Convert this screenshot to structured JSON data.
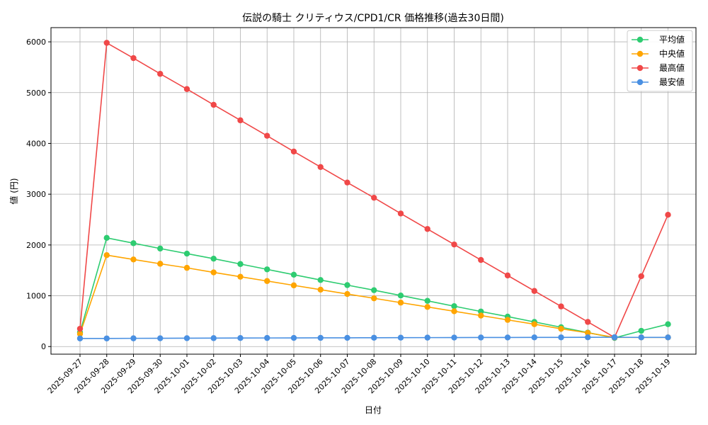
{
  "chart_data": {
    "type": "line",
    "title": "伝説の騎士 クリティウス/CPD1/CR 価格推移(過去30日間)",
    "xlabel": "日付",
    "ylabel": "値 (円)",
    "ylim": [
      -150,
      6280
    ],
    "yticks": [
      0,
      1000,
      2000,
      3000,
      4000,
      5000,
      6000
    ],
    "grid": true,
    "legend_position": "top-right",
    "categories": [
      "2025-09-27",
      "2025-09-28",
      "2025-09-29",
      "2025-09-30",
      "2025-10-01",
      "2025-10-02",
      "2025-10-03",
      "2025-10-04",
      "2025-10-05",
      "2025-10-06",
      "2025-10-07",
      "2025-10-08",
      "2025-10-09",
      "2025-10-10",
      "2025-10-11",
      "2025-10-12",
      "2025-10-13",
      "2025-10-14",
      "2025-10-15",
      "2025-10-16",
      "2025-10-17",
      "2025-10-18",
      "2025-10-19"
    ],
    "series": [
      {
        "name": "平均値",
        "color": "#2ecc71",
        "values": [
          280,
          2140,
          2035,
          1930,
          1830,
          1730,
          1625,
          1520,
          1415,
          1310,
          1210,
          1110,
          1005,
          900,
          795,
          690,
          590,
          485,
          380,
          275,
          170,
          310,
          440
        ]
      },
      {
        "name": "中央値",
        "color": "#ffa500",
        "values": [
          250,
          1800,
          1715,
          1630,
          1550,
          1460,
          1375,
          1290,
          1205,
          1120,
          1035,
          950,
          865,
          780,
          695,
          610,
          525,
          440,
          350,
          270,
          180,
          180,
          180
        ]
      },
      {
        "name": "最高値",
        "color": "#f04848",
        "values": [
          350,
          5980,
          5680,
          5370,
          5070,
          4760,
          4455,
          4150,
          3840,
          3535,
          3230,
          2930,
          2620,
          2315,
          2010,
          1705,
          1400,
          1095,
          790,
          485,
          180,
          1385,
          2595
        ]
      },
      {
        "name": "最安値",
        "color": "#4a90e2",
        "values": [
          160,
          160,
          162,
          163,
          165,
          166,
          168,
          169,
          170,
          171,
          172,
          174,
          175,
          176,
          177,
          178,
          179,
          180,
          181,
          182,
          183,
          180,
          180
        ]
      }
    ]
  }
}
